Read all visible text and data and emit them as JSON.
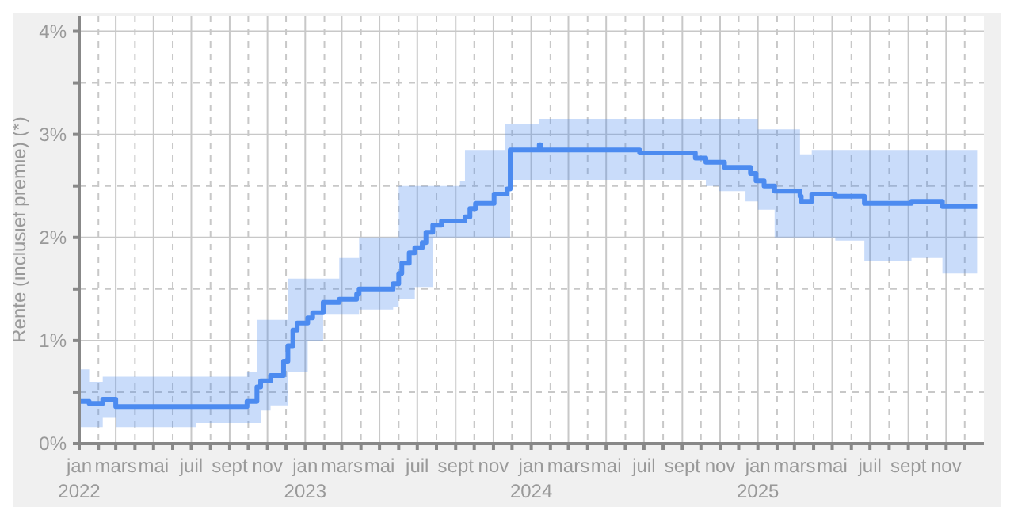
{
  "chart_data": {
    "type": "step",
    "ylabel": "Rente (inclusief premie) (*)",
    "x": [
      "2022-01-01",
      "2022-01-17",
      "2022-02-08",
      "2022-03-01",
      "2022-07-09",
      "2022-09-29",
      "2022-10-15",
      "2022-10-21",
      "2022-11-06",
      "2022-11-27",
      "2022-12-04",
      "2022-12-12",
      "2022-12-19",
      "2023-01-05",
      "2023-01-13",
      "2023-01-30",
      "2023-02-25",
      "2023-03-25",
      "2023-03-29",
      "2023-05-23",
      "2023-06-01",
      "2023-06-06",
      "2023-06-18",
      "2023-06-27",
      "2023-07-09",
      "2023-07-15",
      "2023-07-26",
      "2023-08-09",
      "2023-09-08",
      "2023-09-16",
      "2023-09-24",
      "2023-10-03",
      "2023-11-02",
      "2023-11-19",
      "2023-11-23",
      "2023-11-28",
      "2024-01-14",
      "2024-01-16",
      "2024-06-24",
      "2024-09-22",
      "2024-10-09",
      "2024-10-30",
      "2024-11-08",
      "2024-12-12",
      "2024-12-20",
      "2024-12-29",
      "2025-01-01",
      "2025-01-11",
      "2025-01-28",
      "2025-03-10",
      "2025-03-12",
      "2025-03-29",
      "2025-05-06",
      "2025-06-22",
      "2025-09-06",
      "2025-10-26",
      "2025-12-21"
    ],
    "series": [
      {
        "color": "#4c8bf0",
        "values": [
          0.41,
          0.39,
          0.43,
          0.36,
          0.36,
          0.41,
          0.55,
          0.61,
          0.66,
          0.8,
          0.95,
          1.1,
          1.17,
          1.22,
          1.27,
          1.37,
          1.4,
          1.45,
          1.5,
          1.55,
          1.65,
          1.75,
          1.85,
          1.9,
          1.95,
          2.05,
          2.12,
          2.16,
          2.16,
          2.2,
          2.28,
          2.33,
          2.42,
          2.42,
          2.47,
          2.85,
          2.9,
          2.85,
          2.82,
          2.77,
          2.73,
          2.73,
          2.68,
          2.68,
          2.62,
          2.55,
          2.55,
          2.5,
          2.45,
          2.4,
          2.35,
          2.42,
          2.4,
          2.33,
          2.35,
          2.3,
          2.3
        ],
        "lower": [
          0.16,
          0.16,
          0.25,
          0.16,
          0.2,
          0.2,
          0.2,
          0.32,
          0.37,
          0.37,
          0.7,
          0.7,
          0.7,
          1.0,
          1.0,
          1.25,
          1.25,
          1.25,
          1.3,
          1.33,
          1.4,
          1.4,
          1.4,
          1.52,
          1.52,
          1.52,
          2.0,
          2.0,
          2.0,
          2.0,
          2.0,
          2.0,
          2.0,
          2.0,
          2.0,
          2.56,
          2.56,
          2.56,
          2.56,
          2.56,
          2.5,
          2.45,
          2.45,
          2.35,
          2.35,
          2.35,
          2.27,
          2.27,
          2.0,
          2.0,
          2.0,
          2.0,
          1.97,
          1.77,
          1.8,
          1.65,
          1.65
        ],
        "upper": [
          0.72,
          0.6,
          0.65,
          0.65,
          0.65,
          0.7,
          1.2,
          1.2,
          1.2,
          1.2,
          1.6,
          1.6,
          1.6,
          1.6,
          1.6,
          1.6,
          1.8,
          1.8,
          2.0,
          2.0,
          2.5,
          2.5,
          2.5,
          2.5,
          2.5,
          2.5,
          2.5,
          2.5,
          2.55,
          2.85,
          2.85,
          2.85,
          2.85,
          3.1,
          3.1,
          3.1,
          3.15,
          3.15,
          3.15,
          3.15,
          3.15,
          3.15,
          3.15,
          3.15,
          3.15,
          3.15,
          3.05,
          3.05,
          3.05,
          2.8,
          2.8,
          2.85,
          2.85,
          2.85,
          2.85,
          2.85,
          2.85
        ]
      }
    ],
    "xlim": [
      "2022-01-01",
      "2026-01-01"
    ],
    "xticks": [
      {
        "value": "2022-01",
        "label": "jan\n2022"
      },
      {
        "value": "2022-02",
        "label": null
      },
      {
        "value": "2022-03",
        "label": "mars"
      },
      {
        "value": "2022-04",
        "label": null
      },
      {
        "value": "2022-05",
        "label": "mai"
      },
      {
        "value": "2022-06",
        "label": null
      },
      {
        "value": "2022-07",
        "label": "juil"
      },
      {
        "value": "2022-08",
        "label": null
      },
      {
        "value": "2022-09",
        "label": "sept"
      },
      {
        "value": "2022-10",
        "label": null
      },
      {
        "value": "2022-11",
        "label": "nov"
      },
      {
        "value": "2022-12",
        "label": null
      },
      {
        "value": "2023-01",
        "label": "jan\n2023"
      },
      {
        "value": "2023-02",
        "label": null
      },
      {
        "value": "2023-03",
        "label": "mars"
      },
      {
        "value": "2023-04",
        "label": null
      },
      {
        "value": "2023-05",
        "label": "mai"
      },
      {
        "value": "2023-06",
        "label": null
      },
      {
        "value": "2023-07",
        "label": "juil"
      },
      {
        "value": "2023-08",
        "label": null
      },
      {
        "value": "2023-09",
        "label": "sept"
      },
      {
        "value": "2023-10",
        "label": null
      },
      {
        "value": "2023-11",
        "label": "nov"
      },
      {
        "value": "2023-12",
        "label": null
      },
      {
        "value": "2024-01",
        "label": "jan\n2024"
      },
      {
        "value": "2024-02",
        "label": null
      },
      {
        "value": "2024-03",
        "label": "mars"
      },
      {
        "value": "2024-04",
        "label": null
      },
      {
        "value": "2024-05",
        "label": "mai"
      },
      {
        "value": "2024-06",
        "label": null
      },
      {
        "value": "2024-07",
        "label": "juil"
      },
      {
        "value": "2024-08",
        "label": null
      },
      {
        "value": "2024-09",
        "label": "sept"
      },
      {
        "value": "2024-10",
        "label": null
      },
      {
        "value": "2024-11",
        "label": "nov"
      },
      {
        "value": "2024-12",
        "label": null
      },
      {
        "value": "2025-01",
        "label": "jan\n2025"
      },
      {
        "value": "2025-02",
        "label": null
      },
      {
        "value": "2025-03",
        "label": "mars"
      },
      {
        "value": "2025-04",
        "label": null
      },
      {
        "value": "2025-05",
        "label": "mai"
      },
      {
        "value": "2025-06",
        "label": null
      },
      {
        "value": "2025-07",
        "label": "juil"
      },
      {
        "value": "2025-08",
        "label": null
      },
      {
        "value": "2025-09",
        "label": "sept"
      },
      {
        "value": "2025-10",
        "label": null
      },
      {
        "value": "2025-11",
        "label": "nov"
      },
      {
        "value": "2025-12",
        "label": null
      }
    ],
    "ylim": [
      0,
      4.15
    ],
    "yticks": [
      {
        "value": 0,
        "label": "0%"
      },
      {
        "value": 0.5,
        "label": null
      },
      {
        "value": 1,
        "label": "1%"
      },
      {
        "value": 1.5,
        "label": null
      },
      {
        "value": 2,
        "label": "2%"
      },
      {
        "value": 2.5,
        "label": null
      },
      {
        "value": 3,
        "label": "3%"
      },
      {
        "value": 3.5,
        "label": null
      },
      {
        "value": 4,
        "label": "4%"
      }
    ],
    "grid": true,
    "legend": false,
    "marker": "none",
    "line_style": "solid"
  }
}
